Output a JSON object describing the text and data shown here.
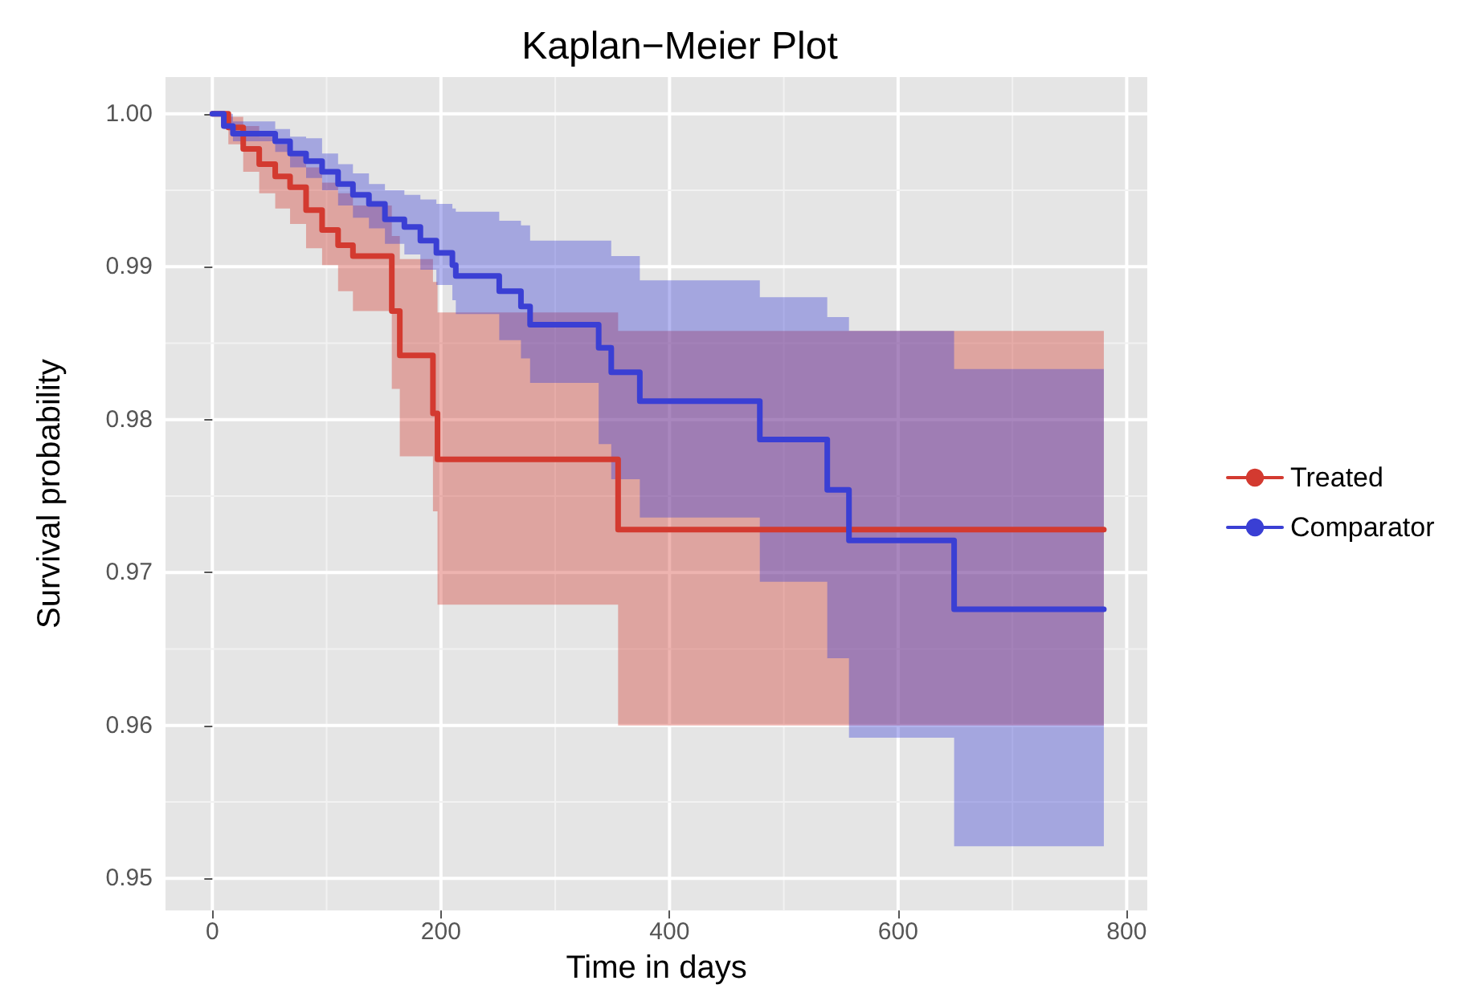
{
  "chart_data": {
    "type": "step",
    "title": "Kaplan−Meier Plot",
    "xlabel": "Time in days",
    "ylabel": "Survival probability",
    "xlim": [
      -41,
      818
    ],
    "ylim": [
      0.9479,
      1.0024
    ],
    "xticks": [
      0,
      200,
      400,
      600,
      800
    ],
    "yticks": [
      0.95,
      0.96,
      0.97,
      0.98,
      0.99,
      {
        "value": 1,
        "label": "1.00"
      }
    ],
    "grid": true,
    "legend": "right",
    "marker": "none",
    "series": [
      {
        "name": "Treated",
        "color": "#d33a30",
        "x": [
          0,
          14,
          27,
          41,
          55,
          68,
          82,
          96,
          110,
          123,
          157,
          164,
          193,
          197,
          355,
          780
        ],
        "values": [
          1,
          0.9991,
          0.9977,
          0.9967,
          0.9959,
          0.9952,
          0.9937,
          0.9924,
          0.9914,
          0.9907,
          0.9871,
          0.9842,
          0.9804,
          0.9774,
          0.9728,
          0.9728
        ],
        "lower": [
          1,
          0.998,
          0.9962,
          0.9948,
          0.9938,
          0.9928,
          0.9912,
          0.9901,
          0.9884,
          0.9871,
          0.982,
          0.9776,
          0.974,
          0.9679,
          0.96,
          0.96
        ],
        "upper": [
          1,
          0.9998,
          0.9992,
          0.9985,
          0.998,
          0.9975,
          0.9965,
          0.9955,
          0.9948,
          0.994,
          0.992,
          0.9905,
          0.989,
          0.987,
          0.9858,
          0.9858
        ]
      },
      {
        "name": "Comparator",
        "color": "#3a3fd4",
        "x": [
          0,
          10,
          18,
          55,
          68,
          82,
          96,
          110,
          123,
          137,
          151,
          168,
          182,
          196,
          210,
          213,
          251,
          270,
          278,
          338,
          349,
          374,
          479,
          538,
          557,
          649,
          780
        ],
        "values": [
          1,
          0.9992,
          0.9987,
          0.9982,
          0.9974,
          0.9969,
          0.9962,
          0.9954,
          0.9947,
          0.9941,
          0.9931,
          0.9926,
          0.9917,
          0.9909,
          0.9901,
          0.9894,
          0.9884,
          0.9874,
          0.9862,
          0.9847,
          0.9831,
          0.9812,
          0.9787,
          0.9754,
          0.9721,
          0.9676,
          0.9676
        ],
        "lower": [
          1,
          0.999,
          0.9982,
          0.9975,
          0.9965,
          0.9958,
          0.995,
          0.994,
          0.9932,
          0.9925,
          0.9915,
          0.9908,
          0.9898,
          0.9888,
          0.9878,
          0.9869,
          0.9852,
          0.984,
          0.9824,
          0.9784,
          0.9761,
          0.9736,
          0.9694,
          0.9644,
          0.9592,
          0.9521,
          0.9521
        ],
        "upper": [
          1,
          1,
          0.9995,
          0.999,
          0.9985,
          0.9984,
          0.9974,
          0.9967,
          0.9961,
          0.9954,
          0.995,
          0.9947,
          0.9944,
          0.9941,
          0.9938,
          0.9936,
          0.993,
          0.9927,
          0.9917,
          0.9917,
          0.9907,
          0.9891,
          0.988,
          0.9867,
          0.9858,
          0.9833,
          0.9833
        ]
      }
    ]
  }
}
